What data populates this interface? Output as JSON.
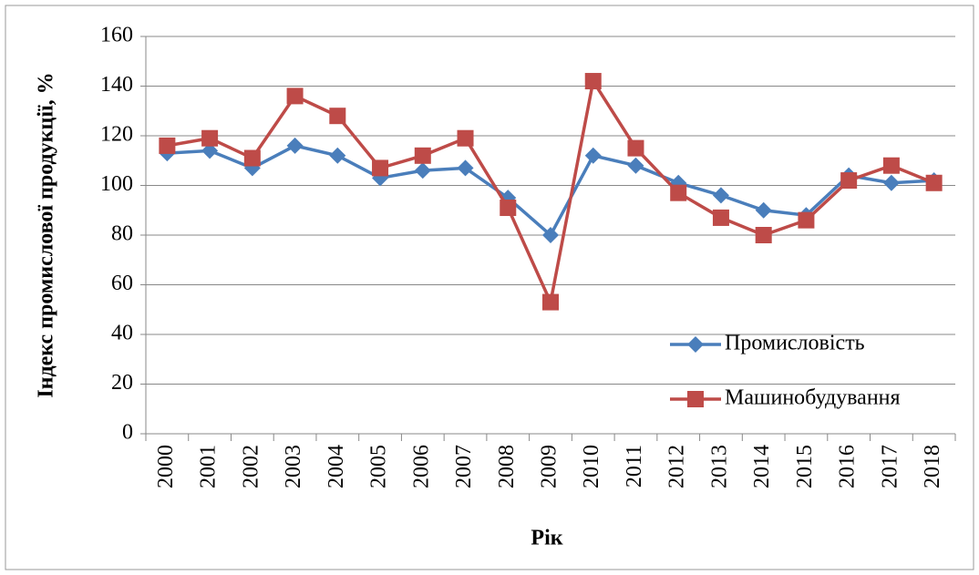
{
  "chart_data": {
    "type": "line",
    "y_label": "Індекс промислової продукції, %",
    "x_label": "Рік",
    "categories": [
      "2000",
      "2001",
      "2002",
      "2003",
      "2004",
      "2005",
      "2006",
      "2007",
      "2008",
      "2009",
      "2010",
      "2011",
      "2012",
      "2013",
      "2014",
      "2015",
      "2016",
      "2017",
      "2018"
    ],
    "series": [
      {
        "name": "Промисловість",
        "color": "#4a7ebb",
        "marker": "diamond",
        "values": [
          113,
          114,
          107,
          116,
          112,
          103,
          106,
          107,
          95,
          80,
          112,
          108,
          101,
          96,
          90,
          88,
          104,
          101,
          102
        ]
      },
      {
        "name": "Машинобудування",
        "color": "#be4b48",
        "marker": "square",
        "values": [
          116,
          119,
          111,
          136,
          128,
          107,
          112,
          119,
          91,
          53,
          142,
          115,
          97,
          87,
          80,
          86,
          102,
          108,
          101
        ]
      }
    ],
    "ylim": [
      0,
      160
    ],
    "yticks": [
      0,
      20,
      40,
      60,
      80,
      100,
      120,
      140,
      160
    ],
    "grid": true,
    "legend": "right"
  }
}
